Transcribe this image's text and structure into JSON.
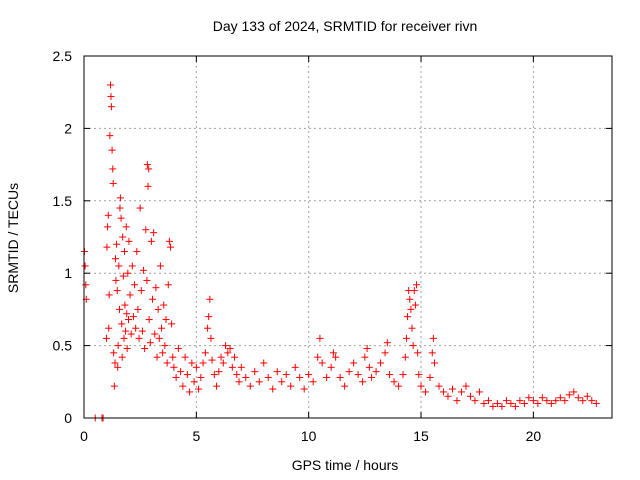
{
  "chart_data": {
    "type": "scatter",
    "title": "Day 133 of 2024, SRMTID for receiver rivn",
    "xlabel": "GPS time / hours",
    "ylabel": "SRMTID / TECUs",
    "xlim": [
      0,
      23.5
    ],
    "ylim": [
      0,
      2.5
    ],
    "xticks": [
      0,
      5,
      10,
      15,
      20
    ],
    "yticks": [
      0,
      0.5,
      1,
      1.5,
      2,
      2.5
    ],
    "xtick_labels": [
      "0",
      "5",
      "10",
      "15",
      "20"
    ],
    "ytick_labels": [
      "0",
      "0.5",
      "1",
      "1.5",
      "2",
      "2.5"
    ],
    "grid": true,
    "marker": "+",
    "color": "#ff0000",
    "series": [
      {
        "name": "SRMTID",
        "points": [
          [
            0.02,
            1.15
          ],
          [
            0.05,
            1.05
          ],
          [
            0.08,
            0.92
          ],
          [
            0.1,
            0.82
          ],
          [
            0.5,
            0.0
          ],
          [
            0.8,
            0.0
          ],
          [
            0.85,
            0.0
          ],
          [
            1.0,
            0.55
          ],
          [
            1.02,
            1.18
          ],
          [
            1.05,
            1.32
          ],
          [
            1.08,
            1.4
          ],
          [
            1.1,
            0.62
          ],
          [
            1.12,
            0.85
          ],
          [
            1.15,
            1.95
          ],
          [
            1.18,
            2.3
          ],
          [
            1.2,
            2.22
          ],
          [
            1.22,
            2.15
          ],
          [
            1.25,
            1.85
          ],
          [
            1.28,
            1.72
          ],
          [
            1.3,
            1.62
          ],
          [
            1.32,
            0.45
          ],
          [
            1.35,
            0.22
          ],
          [
            1.38,
            0.38
          ],
          [
            1.4,
            1.1
          ],
          [
            1.42,
            0.95
          ],
          [
            1.45,
            1.2
          ],
          [
            1.48,
            0.88
          ],
          [
            1.5,
            0.35
          ],
          [
            1.52,
            0.5
          ],
          [
            1.55,
            1.05
          ],
          [
            1.58,
            0.75
          ],
          [
            1.6,
            1.45
          ],
          [
            1.62,
            1.52
          ],
          [
            1.65,
            1.38
          ],
          [
            1.68,
            0.65
          ],
          [
            1.7,
            0.42
          ],
          [
            1.72,
            1.25
          ],
          [
            1.75,
            0.98
          ],
          [
            1.78,
            0.55
          ],
          [
            1.8,
            1.15
          ],
          [
            1.82,
            0.78
          ],
          [
            1.85,
            0.6
          ],
          [
            1.88,
            1.32
          ],
          [
            1.9,
            0.72
          ],
          [
            1.92,
            0.48
          ],
          [
            1.95,
            1.0
          ],
          [
            1.98,
            0.68
          ],
          [
            2.0,
            1.22
          ],
          [
            2.05,
            0.85
          ],
          [
            2.1,
            0.58
          ],
          [
            2.15,
            1.05
          ],
          [
            2.2,
            0.7
          ],
          [
            2.25,
            0.92
          ],
          [
            2.3,
            0.62
          ],
          [
            2.35,
            1.15
          ],
          [
            2.4,
            0.75
          ],
          [
            2.45,
            0.55
          ],
          [
            2.5,
            1.45
          ],
          [
            2.55,
            0.88
          ],
          [
            2.6,
            0.6
          ],
          [
            2.65,
            1.02
          ],
          [
            2.7,
            0.48
          ],
          [
            2.75,
            1.3
          ],
          [
            2.8,
            0.95
          ],
          [
            2.82,
            1.75
          ],
          [
            2.85,
            1.6
          ],
          [
            2.88,
            1.72
          ],
          [
            2.9,
            0.68
          ],
          [
            2.95,
            0.52
          ],
          [
            3.0,
            1.22
          ],
          [
            3.05,
            0.82
          ],
          [
            3.1,
            1.28
          ],
          [
            3.15,
            0.58
          ],
          [
            3.2,
            0.9
          ],
          [
            3.25,
            0.42
          ],
          [
            3.3,
            0.75
          ],
          [
            3.35,
            0.55
          ],
          [
            3.4,
            1.05
          ],
          [
            3.45,
            0.62
          ],
          [
            3.5,
            0.45
          ],
          [
            3.55,
            0.78
          ],
          [
            3.6,
            0.5
          ],
          [
            3.65,
            0.68
          ],
          [
            3.7,
            0.38
          ],
          [
            3.75,
            0.92
          ],
          [
            3.8,
            1.22
          ],
          [
            3.85,
            1.18
          ],
          [
            3.9,
            0.65
          ],
          [
            3.95,
            0.42
          ],
          [
            4.0,
            0.35
          ],
          [
            4.1,
            0.28
          ],
          [
            4.2,
            0.48
          ],
          [
            4.3,
            0.32
          ],
          [
            4.4,
            0.22
          ],
          [
            4.5,
            0.42
          ],
          [
            4.6,
            0.3
          ],
          [
            4.7,
            0.18
          ],
          [
            4.8,
            0.38
          ],
          [
            4.9,
            0.25
          ],
          [
            5.0,
            0.35
          ],
          [
            5.1,
            0.2
          ],
          [
            5.2,
            0.28
          ],
          [
            5.3,
            0.38
          ],
          [
            5.4,
            0.45
          ],
          [
            5.5,
            0.62
          ],
          [
            5.55,
            0.7
          ],
          [
            5.6,
            0.82
          ],
          [
            5.65,
            0.55
          ],
          [
            5.7,
            0.4
          ],
          [
            5.8,
            0.3
          ],
          [
            5.9,
            0.22
          ],
          [
            6.0,
            0.32
          ],
          [
            6.1,
            0.42
          ],
          [
            6.2,
            0.38
          ],
          [
            6.3,
            0.5
          ],
          [
            6.4,
            0.45
          ],
          [
            6.5,
            0.48
          ],
          [
            6.6,
            0.35
          ],
          [
            6.7,
            0.42
          ],
          [
            6.8,
            0.3
          ],
          [
            6.9,
            0.25
          ],
          [
            7.0,
            0.35
          ],
          [
            7.2,
            0.28
          ],
          [
            7.4,
            0.22
          ],
          [
            7.6,
            0.32
          ],
          [
            7.8,
            0.25
          ],
          [
            8.0,
            0.38
          ],
          [
            8.2,
            0.28
          ],
          [
            8.4,
            0.2
          ],
          [
            8.6,
            0.32
          ],
          [
            8.8,
            0.25
          ],
          [
            9.0,
            0.3
          ],
          [
            9.2,
            0.22
          ],
          [
            9.4,
            0.35
          ],
          [
            9.6,
            0.28
          ],
          [
            9.8,
            0.2
          ],
          [
            10.0,
            0.3
          ],
          [
            10.2,
            0.25
          ],
          [
            10.4,
            0.42
          ],
          [
            10.5,
            0.55
          ],
          [
            10.6,
            0.38
          ],
          [
            10.8,
            0.28
          ],
          [
            11.0,
            0.35
          ],
          [
            11.1,
            0.45
          ],
          [
            11.2,
            0.42
          ],
          [
            11.4,
            0.28
          ],
          [
            11.6,
            0.22
          ],
          [
            11.8,
            0.32
          ],
          [
            12.0,
            0.38
          ],
          [
            12.2,
            0.3
          ],
          [
            12.4,
            0.25
          ],
          [
            12.5,
            0.42
          ],
          [
            12.6,
            0.48
          ],
          [
            12.7,
            0.35
          ],
          [
            12.8,
            0.28
          ],
          [
            13.0,
            0.32
          ],
          [
            13.2,
            0.38
          ],
          [
            13.4,
            0.45
          ],
          [
            13.5,
            0.52
          ],
          [
            13.6,
            0.3
          ],
          [
            13.8,
            0.25
          ],
          [
            14.0,
            0.22
          ],
          [
            14.2,
            0.3
          ],
          [
            14.3,
            0.42
          ],
          [
            14.35,
            0.55
          ],
          [
            14.4,
            0.7
          ],
          [
            14.45,
            0.88
          ],
          [
            14.5,
            0.82
          ],
          [
            14.55,
            0.75
          ],
          [
            14.6,
            0.62
          ],
          [
            14.65,
            0.5
          ],
          [
            14.7,
            0.88
          ],
          [
            14.75,
            0.78
          ],
          [
            14.8,
            0.92
          ],
          [
            14.85,
            0.45
          ],
          [
            14.9,
            0.3
          ],
          [
            15.0,
            0.22
          ],
          [
            15.2,
            0.18
          ],
          [
            15.4,
            0.28
          ],
          [
            15.5,
            0.45
          ],
          [
            15.55,
            0.55
          ],
          [
            15.6,
            0.38
          ],
          [
            15.8,
            0.22
          ],
          [
            16.0,
            0.18
          ],
          [
            16.2,
            0.15
          ],
          [
            16.4,
            0.2
          ],
          [
            16.6,
            0.12
          ],
          [
            16.8,
            0.18
          ],
          [
            17.0,
            0.22
          ],
          [
            17.2,
            0.15
          ],
          [
            17.4,
            0.12
          ],
          [
            17.6,
            0.18
          ],
          [
            17.8,
            0.1
          ],
          [
            18.0,
            0.12
          ],
          [
            18.2,
            0.08
          ],
          [
            18.4,
            0.1
          ],
          [
            18.6,
            0.08
          ],
          [
            18.8,
            0.12
          ],
          [
            19.0,
            0.1
          ],
          [
            19.2,
            0.08
          ],
          [
            19.4,
            0.12
          ],
          [
            19.6,
            0.1
          ],
          [
            19.8,
            0.14
          ],
          [
            20.0,
            0.12
          ],
          [
            20.2,
            0.1
          ],
          [
            20.4,
            0.14
          ],
          [
            20.6,
            0.12
          ],
          [
            20.8,
            0.1
          ],
          [
            21.0,
            0.12
          ],
          [
            21.2,
            0.14
          ],
          [
            21.4,
            0.12
          ],
          [
            21.6,
            0.16
          ],
          [
            21.8,
            0.18
          ],
          [
            22.0,
            0.14
          ],
          [
            22.2,
            0.12
          ],
          [
            22.4,
            0.15
          ],
          [
            22.6,
            0.12
          ],
          [
            22.8,
            0.1
          ]
        ]
      }
    ]
  }
}
